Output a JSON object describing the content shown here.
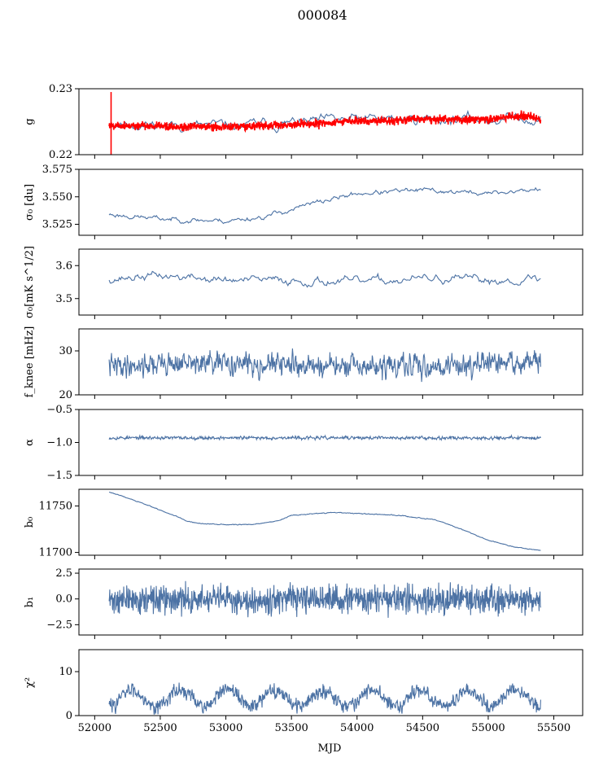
{
  "title": "000084",
  "chart_data": {
    "type": "line",
    "xlabel": "MJD",
    "xlim": [
      51880,
      55720
    ],
    "x_ticks": [
      52000,
      52500,
      53000,
      53500,
      54000,
      54500,
      55000,
      55500
    ],
    "x_range": [
      52110,
      55400
    ],
    "colors": {
      "series": "#4c72a4",
      "overlay": "#ff0000"
    },
    "panels": [
      {
        "id": "g",
        "ylabel": "g",
        "ylim": [
          0.22,
          0.23
        ],
        "yticks": [
          0.22,
          0.23
        ],
        "ytick_labels": [
          "0.22",
          "0.23"
        ],
        "series": [
          {
            "color": "#4c72a4",
            "baseline": [
              [
                52110,
                0.2248
              ],
              [
                52500,
                0.2245
              ],
              [
                53000,
                0.2243
              ],
              [
                53500,
                0.2248
              ],
              [
                54000,
                0.2253
              ],
              [
                54500,
                0.2255
              ],
              [
                55000,
                0.2253
              ],
              [
                55250,
                0.2258
              ],
              [
                55400,
                0.2252
              ]
            ],
            "noise": 0.0016,
            "smooth": 0.82,
            "n": 380,
            "seed": 11
          },
          {
            "color": "#ff0000",
            "baseline": [
              [
                52110,
                0.2245
              ],
              [
                52500,
                0.2243
              ],
              [
                53000,
                0.2242
              ],
              [
                53500,
                0.2245
              ],
              [
                54000,
                0.2251
              ],
              [
                54500,
                0.2254
              ],
              [
                55000,
                0.2253
              ],
              [
                55300,
                0.226
              ],
              [
                55400,
                0.2251
              ]
            ],
            "noise": 0.00035,
            "smooth": 0.0,
            "n": 1400,
            "seed": 5
          }
        ]
      },
      {
        "id": "sigma0-du",
        "ylabel": "σ₀ [du]",
        "ylim": [
          3.515,
          3.575
        ],
        "yticks": [
          3.525,
          3.55,
          3.575
        ],
        "ytick_labels": [
          "3.525",
          "3.550",
          "3.575"
        ],
        "series": [
          {
            "color": "#4c72a4",
            "baseline": [
              [
                52110,
                3.534
              ],
              [
                52500,
                3.53
              ],
              [
                53000,
                3.528
              ],
              [
                53300,
                3.532
              ],
              [
                53700,
                3.545
              ],
              [
                54000,
                3.553
              ],
              [
                54500,
                3.556
              ],
              [
                55000,
                3.553
              ],
              [
                55400,
                3.557
              ]
            ],
            "noise": 0.0035,
            "smooth": 0.75,
            "n": 420,
            "seed": 23
          }
        ]
      },
      {
        "id": "sigma0-mk",
        "ylabel": "σ₀[mK s^1/2]",
        "ylim": [
          3.45,
          3.65
        ],
        "yticks": [
          3.5,
          3.6
        ],
        "ytick_labels": [
          "3.5",
          "3.6"
        ],
        "series": [
          {
            "color": "#4c72a4",
            "baseline": [
              [
                52110,
                3.56
              ],
              [
                52500,
                3.57
              ],
              [
                53000,
                3.555
              ],
              [
                53500,
                3.555
              ],
              [
                54000,
                3.55
              ],
              [
                54500,
                3.56
              ],
              [
                55000,
                3.555
              ],
              [
                55400,
                3.56
              ]
            ],
            "noise": 0.022,
            "smooth": 0.78,
            "n": 380,
            "seed": 37
          }
        ]
      },
      {
        "id": "fknee",
        "ylabel": "f_knee [mHz]",
        "ylim": [
          20,
          35
        ],
        "yticks": [
          20,
          30
        ],
        "ytick_labels": [
          "20",
          "30"
        ],
        "series": [
          {
            "color": "#4c72a4",
            "baseline": [
              [
                52110,
                26.5
              ],
              [
                52600,
                27.2
              ],
              [
                53000,
                27.0
              ],
              [
                53500,
                26.8
              ],
              [
                54000,
                26.3
              ],
              [
                54500,
                26.5
              ],
              [
                55000,
                27.0
              ],
              [
                55400,
                27.5
              ]
            ],
            "noise": 2.0,
            "smooth": 0.35,
            "n": 900,
            "seed": 41
          }
        ]
      },
      {
        "id": "alpha",
        "ylabel": "α",
        "ylim": [
          -1.5,
          -0.5
        ],
        "yticks": [
          -1.5,
          -1.0,
          -0.5
        ],
        "ytick_labels": [
          "−1.5",
          "−1.0",
          "−0.5"
        ],
        "series": [
          {
            "color": "#4c72a4",
            "baseline": [
              [
                52110,
                -0.93
              ],
              [
                55400,
                -0.93
              ]
            ],
            "noise": 0.018,
            "smooth": 0.3,
            "n": 900,
            "seed": 53
          }
        ]
      },
      {
        "id": "b0",
        "ylabel": "b₀",
        "ylim": [
          11697,
          11768
        ],
        "yticks": [
          11700,
          11750
        ],
        "ytick_labels": [
          "11700",
          "11750"
        ],
        "series": [
          {
            "color": "#4c72a4",
            "baseline": [
              [
                52110,
                11765
              ],
              [
                52200,
                11761
              ],
              [
                52400,
                11751
              ],
              [
                52600,
                11740
              ],
              [
                52700,
                11734
              ],
              [
                52800,
                11731
              ],
              [
                53000,
                11730
              ],
              [
                53200,
                11730
              ],
              [
                53400,
                11734
              ],
              [
                53500,
                11740
              ],
              [
                53800,
                11743
              ],
              [
                54000,
                11742
              ],
              [
                54300,
                11740
              ],
              [
                54600,
                11735
              ],
              [
                54800,
                11725
              ],
              [
                55000,
                11713
              ],
              [
                55200,
                11706
              ],
              [
                55400,
                11702
              ]
            ],
            "noise": 0.5,
            "smooth": 0.6,
            "n": 700,
            "seed": 61
          }
        ]
      },
      {
        "id": "b1",
        "ylabel": "b₁",
        "ylim": [
          -3.5,
          2.9
        ],
        "yticks": [
          -2.5,
          0.0,
          2.5
        ],
        "ytick_labels": [
          "−2.5",
          "0.0",
          "2.5"
        ],
        "series": [
          {
            "color": "#4c72a4",
            "baseline": [
              [
                52110,
                -0.1
              ],
              [
                55400,
                0.0
              ]
            ],
            "noise": 0.75,
            "smooth": 0.05,
            "n": 1300,
            "seed": 71
          }
        ]
      },
      {
        "id": "chi2",
        "ylabel": "χ²",
        "ylim": [
          0,
          15
        ],
        "yticks": [
          0,
          10
        ],
        "ytick_labels": [
          "0",
          "10"
        ],
        "series": [
          {
            "color": "#4c72a4",
            "baseline": [
              [
                52110,
                4
              ],
              [
                55400,
                4
              ]
            ],
            "noise": 1.1,
            "smooth": 0.2,
            "n": 1000,
            "seed": 83,
            "seasonal": {
              "amp": 1.8,
              "period": 365
            }
          }
        ]
      }
    ]
  }
}
